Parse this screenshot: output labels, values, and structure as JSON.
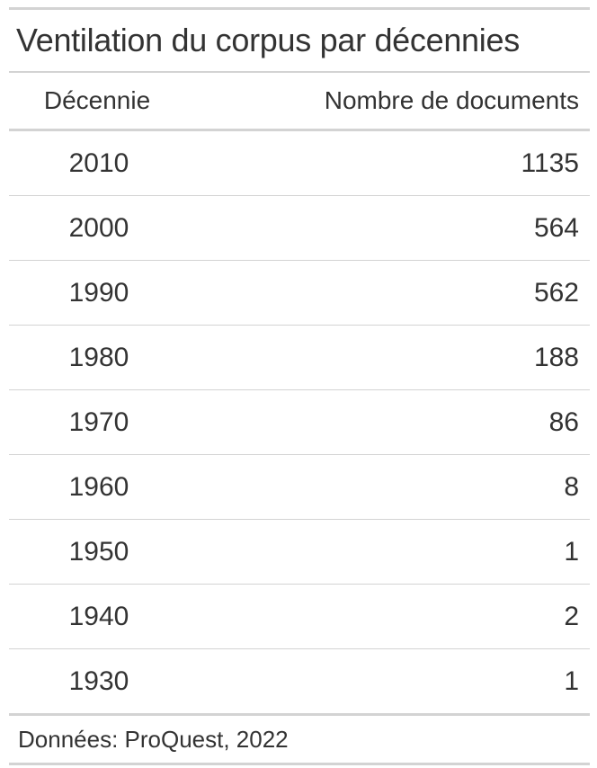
{
  "chart_data": {
    "type": "table",
    "title": "Ventilation du corpus par décennies",
    "columns": [
      "Décennie",
      "Nombre de documents"
    ],
    "rows": [
      {
        "decade": "2010",
        "count": "1135"
      },
      {
        "decade": "2000",
        "count": "564"
      },
      {
        "decade": "1990",
        "count": "562"
      },
      {
        "decade": "1980",
        "count": "188"
      },
      {
        "decade": "1970",
        "count": "86"
      },
      {
        "decade": "1960",
        "count": "8"
      },
      {
        "decade": "1950",
        "count": "1"
      },
      {
        "decade": "1940",
        "count": "2"
      },
      {
        "decade": "1930",
        "count": "1"
      }
    ],
    "source_note": "Données: ProQuest, 2022"
  },
  "colors": {
    "text": "#333333",
    "rules": "#d3d3d3",
    "background": "#ffffff"
  }
}
